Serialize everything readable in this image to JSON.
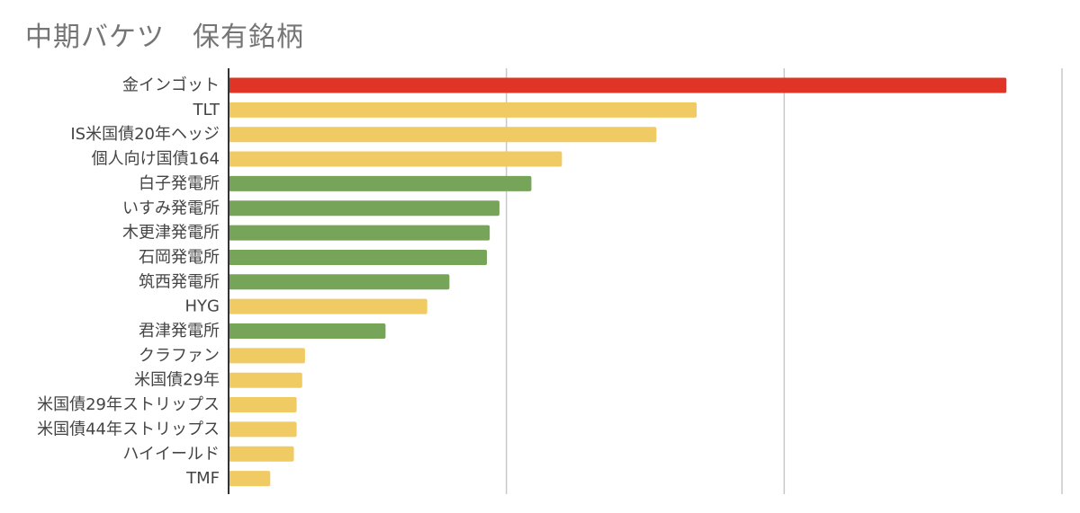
{
  "chart_data": {
    "type": "bar",
    "orientation": "horizontal",
    "title": "中期バケツ　保有銘柄",
    "xlabel": "",
    "ylabel": "",
    "grid": true,
    "legend": "none",
    "xlim": [
      0,
      3
    ],
    "categories": [
      "金インゴット",
      "TLT",
      "IS米国債20年ヘッジ",
      "個人向け国債164",
      "白子発電所",
      "いすみ発電所",
      "木更津発電所",
      "石岡発電所",
      "筑西発電所",
      "HYG",
      "君津発電所",
      "クラファン",
      "米国債29年",
      "米国債29年ストリップス",
      "米国債44年ストリップス",
      "ハイイールド",
      "TMF"
    ],
    "values": [
      2.8,
      1.685,
      1.54,
      1.2,
      1.09,
      0.975,
      0.94,
      0.93,
      0.795,
      0.715,
      0.565,
      0.275,
      0.265,
      0.245,
      0.245,
      0.235,
      0.15
    ],
    "bar_colors": [
      "#e03426",
      "#f0ca63",
      "#f0ca63",
      "#f0ca63",
      "#76a55a",
      "#76a55a",
      "#76a55a",
      "#76a55a",
      "#76a55a",
      "#f0ca63",
      "#76a55a",
      "#f0ca63",
      "#f0ca63",
      "#f0ca63",
      "#f0ca63",
      "#f0ca63",
      "#f0ca63"
    ],
    "axis_color": "#333333",
    "grid_color": "#c8c8c8"
  }
}
